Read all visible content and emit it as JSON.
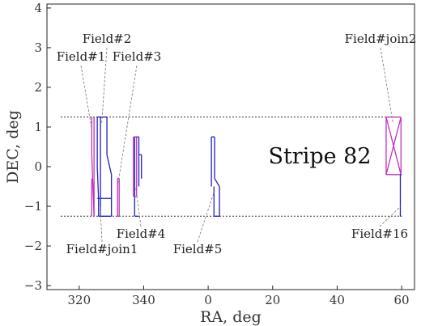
{
  "chart_data": {
    "type": "scatter",
    "title": "",
    "xlabel": "RA, deg",
    "ylabel": "DEC, deg",
    "x_axis_note": "RA wraps at 360 to 0",
    "x_ticks": [
      "320",
      "340",
      "0",
      "20",
      "40",
      "60"
    ],
    "y_ticks": [
      "−3",
      "−2",
      "−1",
      "0",
      "1",
      "2",
      "3",
      "4"
    ],
    "ylim": [
      -3.1,
      4.1
    ],
    "grid": false,
    "stripe": {
      "name": "Stripe 82",
      "dec_bounds": [
        -1.25,
        1.25
      ]
    },
    "fields": [
      {
        "name": "Field#1",
        "color": "#c030c0",
        "segments": [
          [
            [
              323.9,
              1.25
            ],
            [
              323.9,
              0.3
            ]
          ],
          [
            [
              323.9,
              0.3
            ],
            [
              324.6,
              -1.25
            ]
          ],
          [
            [
              324.6,
              -1.25
            ],
            [
              324.6,
              1.25
            ]
          ],
          [
            [
              323.9,
              -0.3
            ],
            [
              323.9,
              -1.25
            ]
          ]
        ]
      },
      {
        "name": "Field#2",
        "color": "#2020c0",
        "segments": [
          [
            [
              325.6,
              1.25
            ],
            [
              328.6,
              1.25
            ]
          ],
          [
            [
              328.6,
              1.25
            ],
            [
              328.6,
              0.3
            ]
          ],
          [
            [
              328.6,
              0.3
            ],
            [
              330.0,
              -0.2
            ]
          ],
          [
            [
              330.0,
              -0.2
            ],
            [
              330.0,
              -1.25
            ]
          ],
          [
            [
              330.0,
              -1.25
            ],
            [
              326.0,
              -1.25
            ]
          ],
          [
            [
              326.0,
              -1.25
            ],
            [
              326.0,
              -0.8
            ]
          ],
          [
            [
              326.0,
              -0.8
            ],
            [
              325.6,
              0.0
            ]
          ],
          [
            [
              325.6,
              0.0
            ],
            [
              325.6,
              1.25
            ]
          ],
          [
            [
              325.6,
              -0.8
            ],
            [
              330.0,
              -0.8
            ]
          ],
          [
            [
              326.6,
              1.25
            ],
            [
              326.6,
              -1.25
            ]
          ]
        ]
      },
      {
        "name": "Field#3",
        "color": "#c030c0",
        "segments": [
          [
            [
              331.9,
              -0.3
            ],
            [
              331.9,
              -1.25
            ]
          ],
          [
            [
              332.4,
              -0.3
            ],
            [
              332.4,
              -1.25
            ]
          ],
          [
            [
              331.9,
              -0.3
            ],
            [
              332.4,
              -0.3
            ]
          ],
          [
            [
              331.9,
              -1.25
            ],
            [
              332.4,
              -1.25
            ]
          ]
        ]
      },
      {
        "name": "Field#4",
        "color": "#2020c0",
        "segments": [
          [
            [
              337.2,
              0.75
            ],
            [
              337.2,
              -1.25
            ]
          ],
          [
            [
              337.2,
              -1.25
            ],
            [
              338.5,
              -1.25
            ]
          ],
          [
            [
              338.5,
              0.75
            ],
            [
              338.5,
              -0.5
            ]
          ],
          [
            [
              337.2,
              0.75
            ],
            [
              338.5,
              0.75
            ]
          ],
          [
            [
              338.5,
              0.3
            ],
            [
              339.3,
              0.3
            ]
          ],
          [
            [
              339.3,
              0.3
            ],
            [
              339.3,
              -0.3
            ]
          ]
        ]
      },
      {
        "name": "Field#join1",
        "color": "#c030c0",
        "segments": [
          [
            [
              336.8,
              0.75
            ],
            [
              336.8,
              -0.75
            ]
          ],
          [
            [
              337.8,
              0.75
            ],
            [
              337.8,
              -0.75
            ]
          ],
          [
            [
              336.8,
              0.75
            ],
            [
              337.8,
              0.75
            ]
          ],
          [
            [
              336.8,
              -0.75
            ],
            [
              337.8,
              -0.75
            ]
          ]
        ]
      },
      {
        "name": "Field#5",
        "color": "#2020c0",
        "segments": [
          [
            [
              1.0,
              0.75
            ],
            [
              1.0,
              -0.5
            ]
          ],
          [
            [
              1.0,
              0.75
            ],
            [
              2.0,
              0.75
            ]
          ],
          [
            [
              2.0,
              0.75
            ],
            [
              2.0,
              -0.3
            ]
          ],
          [
            [
              2.0,
              -0.3
            ],
            [
              3.5,
              -0.5
            ]
          ],
          [
            [
              3.5,
              -0.5
            ],
            [
              3.5,
              -1.25
            ]
          ],
          [
            [
              3.5,
              -1.25
            ],
            [
              1.8,
              -1.25
            ]
          ],
          [
            [
              1.8,
              -1.25
            ],
            [
              1.8,
              -0.5
            ]
          ]
        ]
      },
      {
        "name": "Field#join2",
        "color": "#c030c0",
        "segments": [
          [
            [
              55.2,
              1.25
            ],
            [
              59.8,
              1.25
            ]
          ],
          [
            [
              59.8,
              1.25
            ],
            [
              59.8,
              -0.2
            ]
          ],
          [
            [
              59.8,
              -0.2
            ],
            [
              55.2,
              -0.2
            ]
          ],
          [
            [
              55.2,
              -0.2
            ],
            [
              55.2,
              1.25
            ]
          ],
          [
            [
              55.2,
              1.25
            ],
            [
              59.8,
              -0.2
            ]
          ],
          [
            [
              59.8,
              1.25
            ],
            [
              55.2,
              -0.2
            ]
          ]
        ]
      },
      {
        "name": "Field#16",
        "color": "#2020c0",
        "segments": [
          [
            [
              59.6,
              -0.2
            ],
            [
              59.6,
              -1.25
            ]
          ],
          [
            [
              59.6,
              -0.2
            ],
            [
              60.0,
              -0.2
            ]
          ],
          [
            [
              59.6,
              -1.25
            ],
            [
              60.0,
              -1.25
            ]
          ]
        ]
      }
    ]
  }
}
